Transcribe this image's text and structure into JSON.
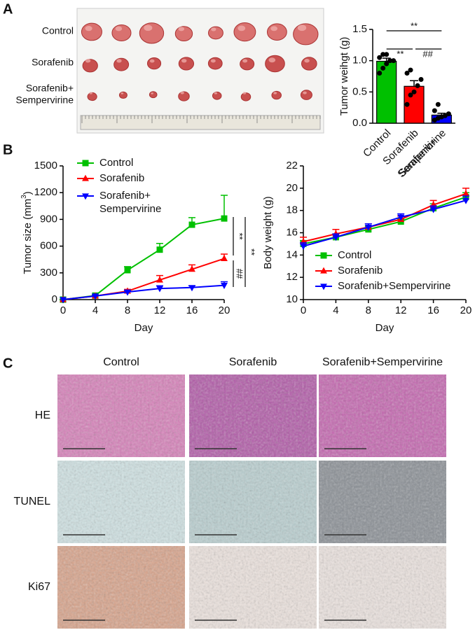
{
  "panels": {
    "a": "A",
    "b": "B",
    "c": "C"
  },
  "photo": {
    "rows": [
      [
        "Control"
      ],
      [
        "Sorafenib"
      ],
      [
        "Sorafenib+",
        "Sempervirine"
      ]
    ]
  },
  "chart_data": [
    {
      "type": "bar",
      "ylabel": "Tumor weihgt (g)",
      "categories": [
        [
          "Control"
        ],
        [
          "Sorafenib"
        ],
        [
          "Sorafenib+",
          "Sempervirine"
        ]
      ],
      "values": [
        0.99,
        0.59,
        0.13
      ],
      "errors": [
        0.05,
        0.09,
        0.03
      ],
      "colors": [
        "#00c000",
        "#ff0000",
        "#0000ff"
      ],
      "points": [
        [
          0.8,
          0.88,
          0.95,
          1.0,
          1.0,
          1.05,
          1.1,
          1.1
        ],
        [
          0.3,
          0.45,
          0.5,
          0.6,
          0.7,
          0.8,
          0.85
        ],
        [
          0.05,
          0.08,
          0.1,
          0.12,
          0.15,
          0.2,
          0.3
        ]
      ],
      "ylim": [
        0,
        1.5
      ],
      "yticks": [
        {
          "value": 0,
          "label": "0.0"
        },
        {
          "value": 0.5,
          "label": "0.5"
        },
        {
          "value": 1,
          "label": "1.0"
        },
        {
          "value": 1.5,
          "label": "1.5"
        }
      ],
      "annotations": [
        "**",
        "**",
        "##"
      ]
    },
    {
      "type": "line",
      "ylabel": [
        "Tumor size (mm",
        "3",
        ")"
      ],
      "xlabel": "Day",
      "x": [
        0,
        4,
        8,
        12,
        16,
        20
      ],
      "xlim": [
        0,
        20
      ],
      "xticks": [
        0,
        4,
        8,
        12,
        16,
        20
      ],
      "ylim": [
        0,
        1500
      ],
      "yticks": [
        0,
        300,
        600,
        900,
        1200,
        1500
      ],
      "series": [
        {
          "name": [
            "Control"
          ],
          "color": "#00c000",
          "marker": "square",
          "values": [
            0,
            45,
            330,
            560,
            840,
            910
          ],
          "errors": [
            0,
            10,
            40,
            70,
            80,
            260
          ]
        },
        {
          "name": [
            "Sorafenib"
          ],
          "color": "#ff0000",
          "marker": "triangle",
          "values": [
            0,
            40,
            95,
            220,
            340,
            460
          ],
          "errors": [
            0,
            8,
            20,
            50,
            50,
            50
          ]
        },
        {
          "name": [
            "Sorafenib+",
            "Sempervirine"
          ],
          "color": "#0000ff",
          "marker": "triangle-down",
          "values": [
            0,
            40,
            85,
            125,
            135,
            160
          ],
          "errors": [
            0,
            8,
            15,
            30,
            20,
            40
          ]
        }
      ],
      "annotations": [
        "**",
        "**",
        "##"
      ]
    },
    {
      "type": "line",
      "ylabel": [
        "Body weight (g)"
      ],
      "xlabel": "Day",
      "x": [
        0,
        4,
        8,
        12,
        16,
        20
      ],
      "xlim": [
        0,
        20
      ],
      "xticks": [
        0,
        4,
        8,
        12,
        16,
        20
      ],
      "ylim": [
        10,
        22
      ],
      "yticks": [
        10,
        12,
        14,
        16,
        18,
        20,
        22
      ],
      "series": [
        {
          "name": [
            "Control"
          ],
          "color": "#00c000",
          "marker": "square",
          "values": [
            15.0,
            15.6,
            16.3,
            17.0,
            18.2,
            19.2
          ],
          "errors": [
            0.3,
            0.3,
            0.3,
            0.2,
            0.4,
            0.4
          ]
        },
        {
          "name": [
            "Sorafenib"
          ],
          "color": "#ff0000",
          "marker": "triangle",
          "values": [
            15.2,
            15.9,
            16.5,
            17.2,
            18.5,
            19.5
          ],
          "errors": [
            0.4,
            0.4,
            0.3,
            0.3,
            0.4,
            0.5
          ]
        },
        {
          "name": [
            "Sorafenib+Sempervirine"
          ],
          "color": "#0000ff",
          "marker": "triangle-down",
          "values": [
            14.8,
            15.6,
            16.5,
            17.4,
            18.1,
            18.9
          ],
          "errors": [
            0.3,
            0.3,
            0.3,
            0.3,
            0.3,
            0.4
          ]
        }
      ]
    }
  ],
  "histology": {
    "columns": [
      "Control",
      "Sorafenib",
      "Sorafenib+Sempervirine"
    ],
    "rows": [
      "HE",
      "TUNEL",
      "Ki67"
    ]
  }
}
